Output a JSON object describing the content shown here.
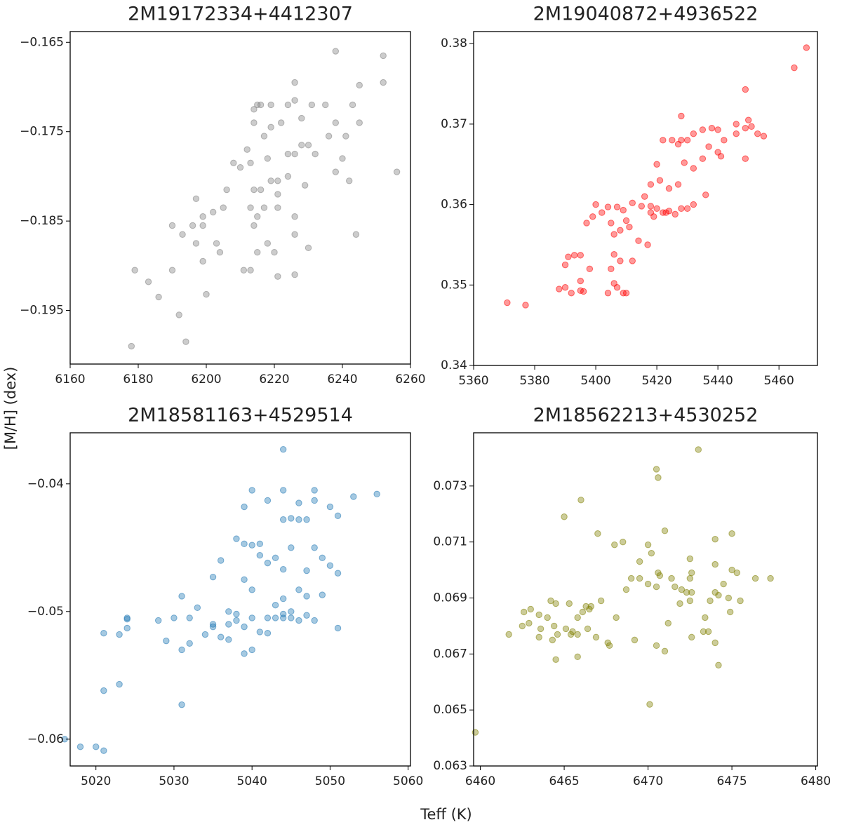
{
  "xlabel": "Teff (K)",
  "ylabel": "[M/H] (dex)",
  "chart_data": [
    {
      "type": "scatter",
      "title": "2M19172334+4412307",
      "color": "#808080",
      "xlim": [
        6160,
        6260
      ],
      "xticks": [
        6160,
        6180,
        6200,
        6220,
        6240,
        6260
      ],
      "ylim": [
        -0.201,
        -0.1638
      ],
      "yticks": [
        {
          "value": -0.165,
          "label": "−0.165"
        },
        {
          "value": -0.175,
          "label": "−0.175"
        },
        {
          "value": -0.185,
          "label": "−0.185"
        },
        {
          "value": -0.195,
          "label": "−0.195"
        }
      ],
      "x": [
        6252,
        6238,
        6252,
        6245,
        6226,
        6215,
        6216,
        6219,
        6224,
        6231,
        6235,
        6243,
        6226,
        6214,
        6222,
        6228,
        6245,
        6214,
        6219,
        6217,
        6238,
        6236,
        6241,
        6230,
        6228,
        6226,
        6224,
        6232,
        6240,
        6238,
        6242,
        6256,
        6212,
        6210,
        6213,
        6218,
        6221,
        6224,
        6229,
        6208,
        6206,
        6214,
        6216,
        6221,
        6219,
        6197,
        6205,
        6199,
        6202,
        6213,
        6217,
        6221,
        6214,
        6215,
        6226,
        6226,
        6244,
        6190,
        6193,
        6196,
        6199,
        6197,
        6203,
        6204,
        6199,
        6211,
        6213,
        6215,
        6218,
        6220,
        6230,
        6179,
        6190,
        6221,
        6226,
        6183,
        6186,
        6200,
        6192,
        6194,
        6178
      ],
      "y": [
        -0.1665,
        -0.166,
        -0.1695,
        -0.1698,
        -0.1695,
        -0.172,
        -0.172,
        -0.172,
        -0.172,
        -0.172,
        -0.172,
        -0.172,
        -0.1715,
        -0.174,
        -0.174,
        -0.1735,
        -0.174,
        -0.1725,
        -0.1745,
        -0.1755,
        -0.174,
        -0.1755,
        -0.1755,
        -0.1765,
        -0.1765,
        -0.1775,
        -0.1775,
        -0.1775,
        -0.178,
        -0.1795,
        -0.1805,
        -0.1795,
        -0.177,
        -0.179,
        -0.1785,
        -0.178,
        -0.1805,
        -0.18,
        -0.181,
        -0.1785,
        -0.1815,
        -0.1815,
        -0.1815,
        -0.182,
        -0.1805,
        -0.1825,
        -0.1835,
        -0.1845,
        -0.184,
        -0.1835,
        -0.1835,
        -0.1835,
        -0.1855,
        -0.1845,
        -0.1845,
        -0.1865,
        -0.1865,
        -0.1855,
        -0.1865,
        -0.1855,
        -0.1855,
        -0.1875,
        -0.1875,
        -0.1885,
        -0.1895,
        -0.1905,
        -0.1905,
        -0.1885,
        -0.1875,
        -0.1885,
        -0.188,
        -0.1905,
        -0.1905,
        -0.1912,
        -0.191,
        -0.1918,
        -0.1935,
        -0.1932,
        -0.1955,
        -0.1985,
        -0.199
      ]
    },
    {
      "type": "scatter",
      "title": "2M19040872+4936522",
      "color": "#ff0000",
      "xlim": [
        5360,
        5472.6
      ],
      "xticks": [
        5360,
        5380,
        5400,
        5420,
        5440,
        5460
      ],
      "ylim": [
        0.34,
        0.3815
      ],
      "yticks": [
        0.34,
        0.35,
        0.36,
        0.37,
        0.38
      ],
      "x": [
        5469,
        5465,
        5449,
        5428,
        5450,
        5446,
        5435,
        5438,
        5440,
        5432,
        5449,
        5451,
        5453,
        5455,
        5446,
        5442,
        5425,
        5428,
        5430,
        5427,
        5422,
        5437,
        5440,
        5441,
        5449,
        5429,
        5432,
        5435,
        5420,
        5421,
        5424,
        5427,
        5418,
        5416,
        5436,
        5412,
        5415,
        5418,
        5420,
        5423,
        5424,
        5428,
        5430,
        5432,
        5418,
        5419,
        5422,
        5426,
        5400,
        5404,
        5407,
        5409,
        5402,
        5399,
        5397,
        5405,
        5410,
        5411,
        5408,
        5406,
        5414,
        5417,
        5391,
        5393,
        5395,
        5390,
        5398,
        5406,
        5408,
        5412,
        5405,
        5388,
        5390,
        5392,
        5395,
        5396,
        5406,
        5407,
        5404,
        5409,
        5410,
        5371,
        5377,
        5395
      ],
      "y": [
        0.3795,
        0.377,
        0.3743,
        0.371,
        0.3705,
        0.37,
        0.3693,
        0.3695,
        0.3693,
        0.3688,
        0.3695,
        0.3697,
        0.3688,
        0.3685,
        0.3688,
        0.368,
        0.368,
        0.368,
        0.368,
        0.3675,
        0.368,
        0.3672,
        0.3665,
        0.366,
        0.3657,
        0.3652,
        0.3645,
        0.3657,
        0.365,
        0.363,
        0.362,
        0.3625,
        0.3625,
        0.361,
        0.3612,
        0.3602,
        0.3598,
        0.3598,
        0.3595,
        0.359,
        0.3592,
        0.3595,
        0.3595,
        0.36,
        0.359,
        0.3585,
        0.359,
        0.3588,
        0.36,
        0.3597,
        0.3597,
        0.3593,
        0.359,
        0.3585,
        0.3577,
        0.3577,
        0.358,
        0.3572,
        0.3568,
        0.3563,
        0.3555,
        0.355,
        0.3535,
        0.3537,
        0.3537,
        0.3525,
        0.352,
        0.3538,
        0.353,
        0.353,
        0.352,
        0.3495,
        0.3497,
        0.349,
        0.3493,
        0.3492,
        0.3502,
        0.3497,
        0.349,
        0.349,
        0.349,
        0.3478,
        0.3475,
        0.3505
      ]
    },
    {
      "type": "scatter",
      "title": "2M18581163+4529514",
      "color": "#1f77b4",
      "xlim": [
        5016.7,
        5060.3
      ],
      "xticks": [
        5020,
        5030,
        5040,
        5050,
        5060
      ],
      "ylim": [
        -0.0621,
        -0.036
      ],
      "yticks": [
        {
          "value": -0.04,
          "label": "−0.04"
        },
        {
          "value": -0.05,
          "label": "−0.05"
        },
        {
          "value": -0.06,
          "label": "−0.06"
        }
      ],
      "x": [
        5044,
        5044,
        5040,
        5048,
        5039,
        5042,
        5046,
        5048,
        5053,
        5056,
        5050,
        5051,
        5044,
        5045,
        5046,
        5047,
        5038,
        5040,
        5041,
        5039,
        5045,
        5048,
        5041,
        5043,
        5036,
        5049,
        5042,
        5044,
        5047,
        5050,
        5051,
        5035,
        5039,
        5040,
        5046,
        5047,
        5049,
        5044,
        5031,
        5033,
        5037,
        5038,
        5043,
        5044,
        5045,
        5024,
        5024,
        5028,
        5030,
        5032,
        5035,
        5035,
        5037,
        5038,
        5040,
        5042,
        5043,
        5044,
        5045,
        5046,
        5047,
        5048,
        5039,
        5041,
        5042,
        5051,
        5021,
        5023,
        5024,
        5034,
        5036,
        5029,
        5032,
        5031,
        5037,
        5039,
        5040,
        5021,
        5023,
        5031,
        5016,
        5018,
        5020,
        5021
      ],
      "y": [
        -0.0373,
        -0.0405,
        -0.0405,
        -0.0405,
        -0.0418,
        -0.0413,
        -0.0415,
        -0.0413,
        -0.041,
        -0.0408,
        -0.0418,
        -0.0425,
        -0.0428,
        -0.0427,
        -0.0428,
        -0.0428,
        -0.0443,
        -0.0448,
        -0.0447,
        -0.0447,
        -0.045,
        -0.045,
        -0.0456,
        -0.0458,
        -0.046,
        -0.0458,
        -0.0462,
        -0.0467,
        -0.0468,
        -0.0464,
        -0.047,
        -0.0473,
        -0.0475,
        -0.0483,
        -0.0483,
        -0.0488,
        -0.0487,
        -0.049,
        -0.0488,
        -0.0497,
        -0.05,
        -0.0502,
        -0.0495,
        -0.0502,
        -0.05,
        -0.0505,
        -0.0506,
        -0.0507,
        -0.0505,
        -0.0505,
        -0.051,
        -0.0512,
        -0.051,
        -0.0507,
        -0.0505,
        -0.0505,
        -0.0505,
        -0.0505,
        -0.0505,
        -0.0507,
        -0.0503,
        -0.0507,
        -0.0512,
        -0.0516,
        -0.0517,
        -0.0513,
        -0.0517,
        -0.0518,
        -0.0513,
        -0.0518,
        -0.052,
        -0.0523,
        -0.0525,
        -0.053,
        -0.0522,
        -0.0533,
        -0.053,
        -0.0562,
        -0.0557,
        -0.0573,
        -0.06,
        -0.0606,
        -0.0606,
        -0.0609
      ]
    },
    {
      "type": "scatter",
      "title": "2M18562213+4530252",
      "color": "#808000",
      "xlim": [
        6459.6,
        6480.1
      ],
      "xticks": [
        6460,
        6465,
        6470,
        6475,
        6480
      ],
      "ylim": [
        0.063,
        0.0749
      ],
      "yticks": [
        0.063,
        0.065,
        0.067,
        0.069,
        0.071,
        0.073
      ],
      "x": [
        6473,
        6470.5,
        6470.6,
        6466,
        6465,
        6467,
        6471,
        6474,
        6475,
        6468,
        6468.5,
        6470,
        6470.2,
        6469.5,
        6472.5,
        6474,
        6475,
        6475.3,
        6476.4,
        6477.3,
        6469,
        6469.5,
        6470.6,
        6470.7,
        6471.4,
        6472.6,
        6472.5,
        6474.5,
        6471.6,
        6472,
        6472.3,
        6474.8,
        6475.5,
        6473.7,
        6470,
        6470.5,
        6468.7,
        6472.6,
        6471.9,
        6472.5,
        6474,
        6474.2,
        6464.2,
        6463,
        6464.5,
        6465.3,
        6466.3,
        6466.6,
        6467.2,
        6466.1,
        6466.5,
        6465.8,
        6462.6,
        6463.5,
        6464,
        6462.5,
        6462.9,
        6463.6,
        6464.4,
        6465.1,
        6465.5,
        6466.4,
        6464.6,
        6465.4,
        6465.8,
        6468.1,
        6471.2,
        6473.4,
        6474.9,
        6461.7,
        6463.5,
        6464.3,
        6466.9,
        6467.6,
        6467.7,
        6469.2,
        6472.6,
        6473.3,
        6473.6,
        6470.5,
        6471,
        6474,
        6464.5,
        6465.8,
        6474.2,
        6470.1,
        6459.7
      ],
      "y": [
        0.0743,
        0.0736,
        0.0733,
        0.0725,
        0.0719,
        0.0713,
        0.0714,
        0.0711,
        0.0713,
        0.0709,
        0.071,
        0.0709,
        0.0706,
        0.0703,
        0.0704,
        0.0702,
        0.07,
        0.0699,
        0.0697,
        0.0697,
        0.0697,
        0.0697,
        0.0699,
        0.0698,
        0.0697,
        0.0699,
        0.0697,
        0.0695,
        0.0694,
        0.0693,
        0.0692,
        0.069,
        0.0689,
        0.0689,
        0.0695,
        0.0694,
        0.0693,
        0.0692,
        0.0688,
        0.0689,
        0.0692,
        0.0691,
        0.0689,
        0.0686,
        0.0688,
        0.0688,
        0.0687,
        0.0687,
        0.0689,
        0.0685,
        0.0686,
        0.0683,
        0.0685,
        0.0684,
        0.0683,
        0.068,
        0.0681,
        0.0679,
        0.068,
        0.0679,
        0.0678,
        0.0679,
        0.0677,
        0.0677,
        0.0677,
        0.0683,
        0.0681,
        0.0683,
        0.0685,
        0.0677,
        0.0676,
        0.0675,
        0.0676,
        0.0674,
        0.0673,
        0.0675,
        0.0676,
        0.0678,
        0.0678,
        0.0673,
        0.0671,
        0.0674,
        0.0668,
        0.0669,
        0.0666,
        0.0652,
        0.0642
      ]
    }
  ]
}
